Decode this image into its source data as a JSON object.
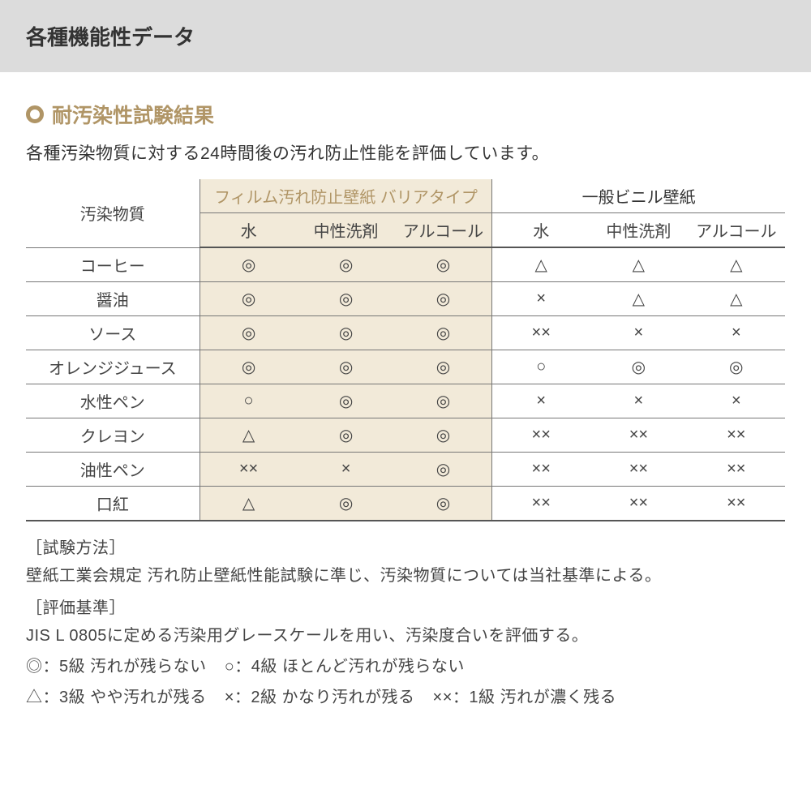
{
  "header": {
    "title": "各種機能性データ"
  },
  "section": {
    "title": "耐汚染性試験結果",
    "intro": "各種汚染物質に対する24時間後の汚れ防止性能を評価しています。"
  },
  "table": {
    "corner": "汚染物質",
    "group_headers": [
      "フィルム汚れ防止壁紙 バリアタイプ",
      "一般ビニル壁紙"
    ],
    "sub_headers": [
      "水",
      "中性洗剤",
      "アルコール",
      "水",
      "中性洗剤",
      "アルコール"
    ],
    "rows": [
      {
        "label": "コーヒー",
        "cells": [
          "◎",
          "◎",
          "◎",
          "△",
          "△",
          "△"
        ]
      },
      {
        "label": "醤油",
        "cells": [
          "◎",
          "◎",
          "◎",
          "×",
          "△",
          "△"
        ]
      },
      {
        "label": "ソース",
        "cells": [
          "◎",
          "◎",
          "◎",
          "××",
          "×",
          "×"
        ]
      },
      {
        "label": "オレンジジュース",
        "cells": [
          "◎",
          "◎",
          "◎",
          "○",
          "◎",
          "◎"
        ]
      },
      {
        "label": "水性ペン",
        "cells": [
          "○",
          "◎",
          "◎",
          "×",
          "×",
          "×"
        ]
      },
      {
        "label": "クレヨン",
        "cells": [
          "△",
          "◎",
          "◎",
          "××",
          "××",
          "××"
        ]
      },
      {
        "label": "油性ペン",
        "cells": [
          "××",
          "×",
          "◎",
          "××",
          "××",
          "××"
        ]
      },
      {
        "label": "口紅",
        "cells": [
          "△",
          "◎",
          "◎",
          "××",
          "××",
          "××"
        ]
      }
    ]
  },
  "notes": {
    "method_label": "［試験方法］",
    "method_text": "壁紙工業会規定 汚れ防止壁紙性能試験に準じ、汚染物質については当社基準による。",
    "criteria_label": "［評価基準］",
    "criteria_text": "JIS L 0805に定める汚染用グレースケールを用い、汚染度合いを評価する。",
    "legend1a": "◎：5級 汚れが残らない",
    "legend1b": "○：4級 ほとんど汚れが残らない",
    "legend2a": "△：3級 やや汚れが残る",
    "legend2b": "×：2級 かなり汚れが残る",
    "legend2c": "××：1級 汚れが濃く残る"
  },
  "style": {
    "accent_color": "#b09566",
    "film_bg": "#f2ead9",
    "header_bg": "#dcdcdc",
    "border_color": "#777777"
  }
}
